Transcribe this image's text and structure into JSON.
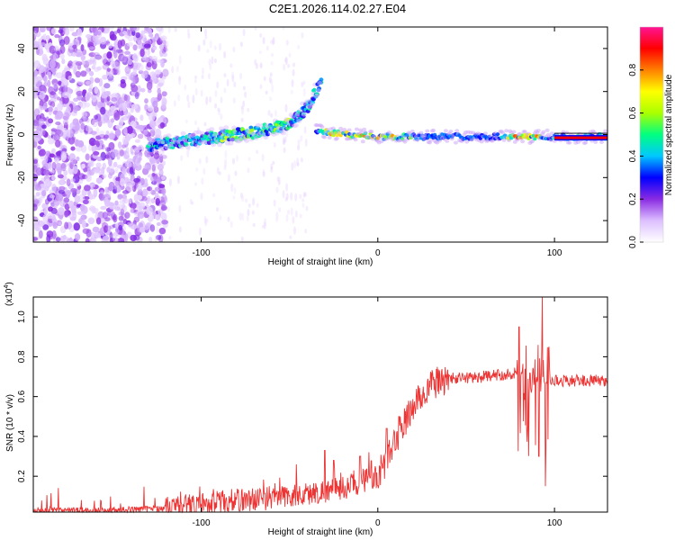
{
  "figure": {
    "title": "C2E1.2026.114.02.27.E04"
  },
  "chart_data": [
    {
      "type": "heatmap",
      "title": "C2E1.2026.114.02.27.E04",
      "xlabel": "Height of straight line (km)",
      "ylabel": "Frequency (Hz)",
      "xlim": [
        -195,
        130
      ],
      "ylim": [
        -50,
        50
      ],
      "x_ticks": [
        -100,
        0,
        100
      ],
      "x_tick_labels": [
        "-100",
        "0",
        "100"
      ],
      "y_ticks": [
        -40,
        -20,
        0,
        20,
        40
      ],
      "y_tick_labels": [
        "-40",
        "-20",
        "0",
        "20",
        "40"
      ],
      "colorbar": {
        "label": "Normalized spectral amplitude",
        "range": [
          0.0,
          1.0
        ],
        "ticks": [
          0.0,
          0.2,
          0.4,
          0.6,
          0.8
        ],
        "tick_labels": [
          "0.0",
          "0.2",
          "0.4",
          "0.6",
          "0.8"
        ],
        "colormap": [
          "#ffffff",
          "#dcbfff",
          "#8a2be2",
          "#0000ff",
          "#00c8ff",
          "#00ff80",
          "#aaff00",
          "#ffff00",
          "#ff8000",
          "#ff0000",
          "#ff1493"
        ]
      },
      "features": {
        "noise_region_x": [
          -195,
          -130
        ],
        "branch_rising": [
          [
            -130,
            -5
          ],
          [
            -100,
            -2
          ],
          [
            -70,
            1
          ],
          [
            -50,
            5
          ],
          [
            -40,
            13
          ],
          [
            -32,
            25
          ]
        ],
        "steady_line": [
          [
            -35,
            2
          ],
          [
            -20,
            0
          ],
          [
            0,
            -1
          ],
          [
            40,
            -1
          ],
          [
            100,
            -1
          ],
          [
            130,
            -1
          ]
        ],
        "strong_line_x": [
          100,
          130
        ],
        "strong_line_freq": -1.5,
        "intermittent_band_x": [
          70,
          95
        ]
      }
    },
    {
      "type": "line",
      "xlabel": "Height of straight line (km)",
      "ylabel": "SNR (10 * v/v)",
      "y_multiplier": "(x10",
      "y_multiplier_exp": "4",
      "y_multiplier_close": ")",
      "xlim": [
        -195,
        130
      ],
      "ylim": [
        0.02,
        1.1
      ],
      "x_ticks": [
        -100,
        0,
        100
      ],
      "x_tick_labels": [
        "-100",
        "0",
        "100"
      ],
      "y_ticks": [
        0.2,
        0.4,
        0.6,
        0.8,
        1.0
      ],
      "y_tick_labels": [
        "0.2",
        "0.4",
        "0.6",
        "0.8",
        "1.0"
      ],
      "series": [
        {
          "name": "SNR",
          "color": "#ee3333",
          "envelope": [
            [
              -195,
              0.03
            ],
            [
              -150,
              0.03
            ],
            [
              -120,
              0.04
            ],
            [
              -100,
              0.06
            ],
            [
              -80,
              0.08
            ],
            [
              -60,
              0.09
            ],
            [
              -40,
              0.11
            ],
            [
              -20,
              0.14
            ],
            [
              -10,
              0.17
            ],
            [
              0,
              0.2
            ],
            [
              5,
              0.28
            ],
            [
              10,
              0.38
            ],
            [
              20,
              0.55
            ],
            [
              30,
              0.66
            ],
            [
              40,
              0.69
            ],
            [
              60,
              0.7
            ],
            [
              80,
              0.72
            ],
            [
              100,
              0.68
            ],
            [
              130,
              0.68
            ]
          ],
          "spikes": [
            [
              -30,
              0.33
            ],
            [
              -25,
              0.28
            ],
            [
              -10,
              0.3
            ],
            [
              5,
              0.44
            ],
            [
              12,
              0.5
            ],
            [
              80,
              0.95
            ],
            [
              84,
              0.45
            ],
            [
              88,
              0.9
            ],
            [
              91,
              0.3
            ],
            [
              93,
              1.1
            ],
            [
              95,
              0.15
            ],
            [
              97,
              0.85
            ]
          ]
        }
      ]
    }
  ]
}
